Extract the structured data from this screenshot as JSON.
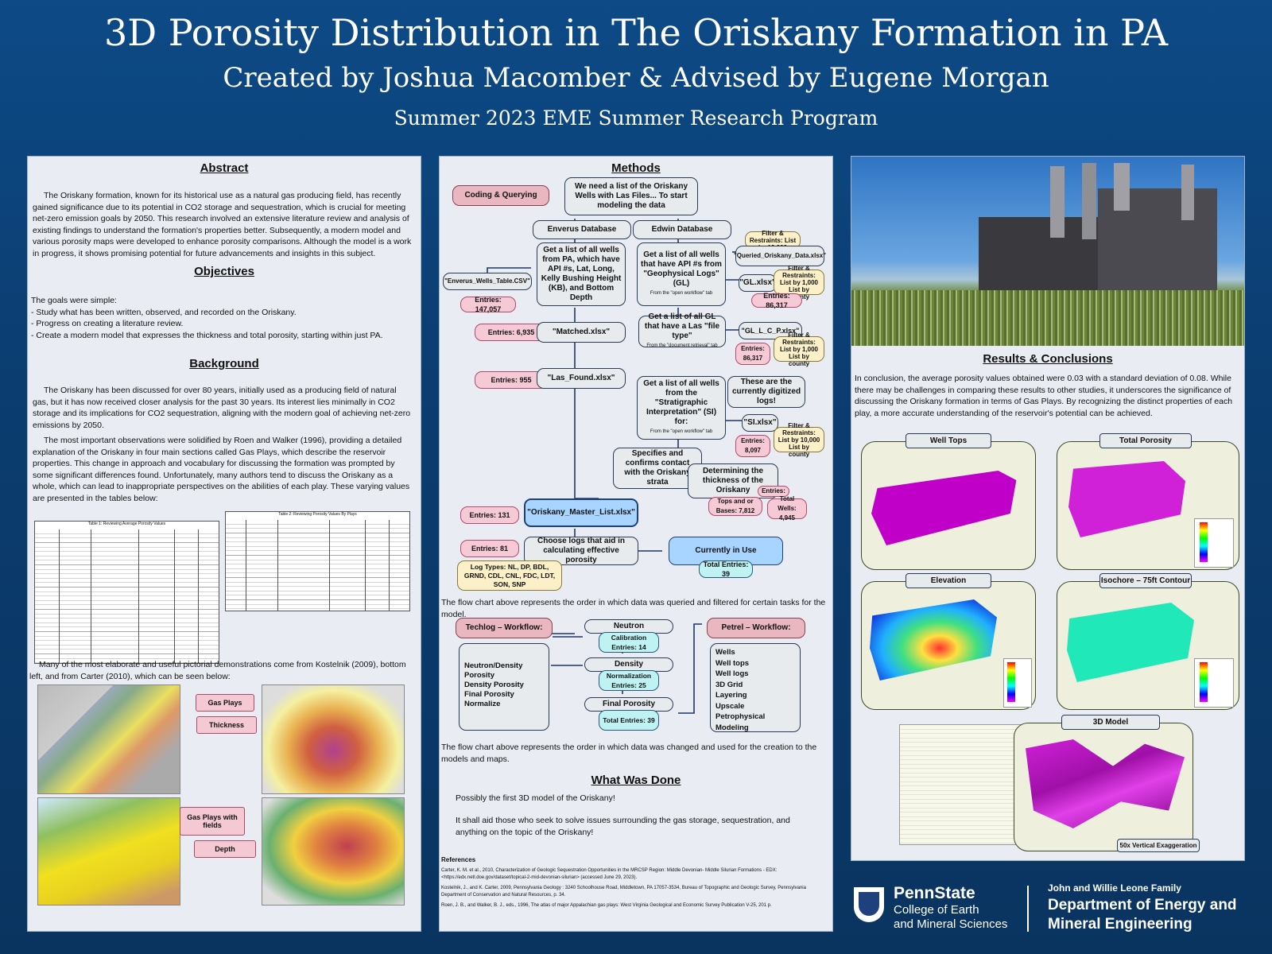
{
  "header": {
    "title": "3D Porosity Distribution in The Oriskany Formation in PA",
    "subtitle": "Created by Joshua Macomber & Advised by Eugene Morgan",
    "program": "Summer 2023 EME Summer Research Program"
  },
  "abstract": {
    "heading": "Abstract",
    "text": "The Oriskany formation, known for its historical use as a natural gas producing field, has recently gained significance due to its potential in CO2 storage and sequestration, which is crucial for meeting net-zero emission goals by 2050. This research involved an extensive literature review and analysis of existing findings to understand the formation's properties better. Subsequently, a modern model and various porosity maps were developed to enhance porosity comparisons. Although the model is a work in progress, it shows promising potential for future advancements and insights in this subject."
  },
  "objectives": {
    "heading": "Objectives",
    "intro": "The goals were simple:",
    "items": [
      "- Study what has been written, observed, and recorded on the Oriskany.",
      "- Progress on creating a literature review.",
      "- Create a modern model that expresses the thickness and total porosity, starting within just PA."
    ]
  },
  "background": {
    "heading": "Background",
    "p1": "The Oriskany has been discussed for over 80 years, initially used as a producing field of natural gas, but it has now received closer analysis for the past 30 years. Its interest lies minimally in CO2 storage and its implications for CO2 sequestration, aligning with the modern goal of achieving net-zero emissions by 2050.",
    "p2": "The most important observations were solidified by Roen and Walker (1996), providing a detailed explanation of the Oriskany in four main sections called Gas Plays, which describe the reservoir properties. This change in approach and vocabulary for discussing the formation was prompted by some significant differences found. Unfortunately, many authors tend to discuss the Oriskany as a whole, which can lead to inappropriate perspectives on the abilities of each play. These varying values are presented in the tables below:",
    "table1_title": "Table 1: Reviewing Average Porosity Values",
    "table2_title": "Table 2: Reviewing Porosity Values By Plays",
    "p3": "Many of the most elaborate and useful pictorial demonstrations come from Kostelnik (2009), bottom left, and from Carter (2010), which can be seen below:",
    "fig_labels": [
      "Gas Plays",
      "Thickness",
      "Gas Plays with fields",
      "Depth"
    ]
  },
  "methods": {
    "heading": "Methods",
    "coding_label": "Coding & Querying",
    "need_text": "We need a list of the Oriskany Wells with Las Files... To start modeling the data",
    "enverus_db": "Enverus Database",
    "edwin_db": "Edwin Database",
    "enverus_list": "Get a list of all wells from PA, which have API #s, Lat, Long, Kelly Bushing Height (KB), and Bottom Depth",
    "edwin_list": "Get a list of all wells that have API #s from \"Geophysical Logs\" (GL)",
    "edwin_list_note": "From the \"open workflow\" tab",
    "enverus_csv": "\"Enverus_Wells_Table.CSV\"",
    "entries_147": "Entries: 147,057",
    "filter1": "Filter & Restraints: List by 10,000",
    "queried": "\"Queried_Oriskany_Data.xlsx\"",
    "gl_xlsx": "\"GL.xlsx\"",
    "filter2": "Filter & Restraints: List by 1,000 List by county",
    "entries_86a": "Entries: 86,317",
    "entries_6935": "Entries: 6,935",
    "matched": "\"Matched.xlsx\"",
    "gl_las": "Get a list of all GL that have a Las \"file type\"",
    "gl_las_note": "From the \"document retrieval\" tab",
    "gl_l_c": "\"GL_L_C_P.xlsx\"",
    "entries_86b": "Entries: 86,317",
    "filter3": "Filter & Restraints: List by 1,000 List by county",
    "entries_955": "Entries: 955",
    "las_found": "\"Las_Found.xlsx\"",
    "si_list": "Get a list of all wells from the \"Stratigraphic Interpretation\" (SI) for:",
    "si_note": "From the \"open workflow\" tab",
    "digitized": "These are the currently digitized logs!",
    "si_xlsx": "\"SI.xlsx\"",
    "entries_8097": "Entries: 8,097",
    "filter4": "Filter & Restraints: List by 10,000 List by county",
    "specifies": "Specifies and confirms contact with the Oriskany strata",
    "determining": "Determining the thickness of the Oriskany",
    "entries_lbl": "Entries:",
    "tops": "Tops and or Bases: 7,812",
    "total_wells": "Total Wells: 4,945",
    "entries_131": "Entries: 131",
    "master": "\"Oriskany_Master_List.xlsx\"",
    "entries_81": "Entries: 81",
    "choose_logs": "Choose logs that aid in calculating effective porosity",
    "currently": "Currently in Use",
    "total_39": "Total Entries: 39",
    "log_types": "Log Types: NL, DP, BDL, GRND, CDL, CNL, FDC, LDT, SON, SNP",
    "caption1": "The flow chart above represents the order in which data was queried and filtered for certain tasks for the model.",
    "techlog": "Techlog – Workflow:",
    "techlog_items": [
      "Neutron/Density Porosity",
      "Density Porosity",
      "Final Porosity",
      "Normalize"
    ],
    "neutron": "Neutron",
    "neutron_sub": "Calibration Entries: 14",
    "density": "Density",
    "density_sub": "Normalization Entries: 25",
    "final": "Final Porosity",
    "final_sub": "Total Entries: 39",
    "petrel": "Petrel – Workflow:",
    "petrel_items": [
      "Wells",
      "Well tops",
      "Well logs",
      "3D Grid",
      "Layering",
      "Upscale",
      "Petrophysical Modeling"
    ],
    "caption2": "The flow chart above represents the order in which data was changed and used for the creation to the models and maps."
  },
  "what_was_done": {
    "heading": "What Was Done",
    "items": [
      "Possibly the first 3D model of the Oriskany!",
      "It shall aid those who seek to solve issues surrounding the gas storage, sequestration, and anything on the topic of the Oriskany!"
    ]
  },
  "references": {
    "heading": "References",
    "items": [
      "Carter, K. M. et al., 2010, Characterization of Geologic Sequestration Opportunities in the MRCSP Region: Middle Devonian- Middle Silurian Formations - EDX: <https://edx.netl.doe.gov/dataset/topical-2-mid-devonian-silurian> (accessed June 29, 2023).",
      "Kostelnik, J., and K. Carter, 2009, Pennsylvania Geology : 3240 Schoolhouse Road, Middletown, PA 17057-3534, Bureau of Topographic and Geologic Survey, Pennsylvania Department of Conservation and Natural Resources, p. 34.",
      "Roen, J. B., and Walker, B. J., eds., 1996, The atlas of major Appalachian gas plays: West Virginia Geological and Economic Survey Publication V-25, 201 p."
    ]
  },
  "results": {
    "heading": "Results & Conclusions",
    "text": "In conclusion, the average porosity values obtained were 0.03 with a standard deviation of 0.08. While there may be challenges in comparing these results to other studies, it underscores the significance of discussing the Oriskany formation in terms of Gas Plays. By recognizing the distinct properties of each play, a more accurate understanding of the reservoir's potential can be achieved.",
    "maps": [
      "Well Tops",
      "Total Porosity",
      "Elevation",
      "Isochore – 75ft Contour"
    ],
    "model_label": "3D Model",
    "exaggeration": "50x Vertical Exaggeration"
  },
  "footer": {
    "psu": "PennState",
    "college1": "College of Earth",
    "college2": "and Mineral Sciences",
    "family": "John and Willie Leone Family",
    "dept1": "Department of Energy and",
    "dept2": "Mineral Engineering"
  },
  "colors": {
    "background": "#0b3d70",
    "panel": "#e9edf3",
    "pink": "#f6c9d6",
    "blue": "#a8d5ff",
    "cyan": "#bff3f3"
  }
}
